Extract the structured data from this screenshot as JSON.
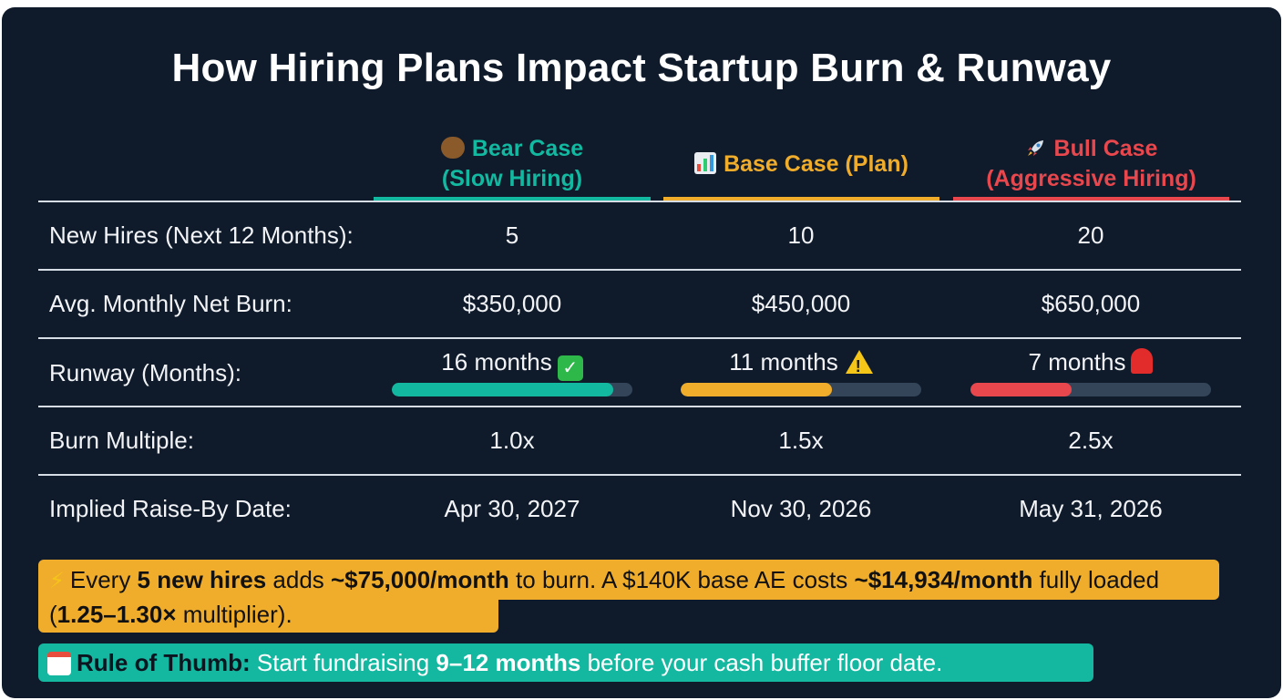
{
  "title": "How Hiring Plans Impact Startup Burn & Runway",
  "columns": [
    {
      "icon": "bear-icon",
      "line1": "Bear Case",
      "line2": "(Slow Hiring)",
      "color": "#12b8a0"
    },
    {
      "icon": "bar-chart-icon",
      "line1": "Base Case (Plan)",
      "line2": "",
      "color": "#f0ad2c"
    },
    {
      "icon": "rocket-icon",
      "line1": "Bull Case",
      "line2": "(Aggressive Hiring)",
      "color": "#e8474d"
    }
  ],
  "rows": {
    "new_hires": {
      "label": "New Hires (Next 12 Months):",
      "values": [
        "5",
        "10",
        "20"
      ]
    },
    "net_burn": {
      "label": "Avg. Monthly Net Burn:",
      "values": [
        "$350,000",
        "$450,000",
        "$650,000"
      ]
    },
    "runway": {
      "label": "Runway (Months):",
      "values": [
        "16 months",
        "11 months",
        "7 months"
      ],
      "status_icons": [
        "check-mark-icon",
        "warning-icon",
        "siren-icon"
      ],
      "bar_fill_fraction": [
        0.92,
        0.63,
        0.42
      ]
    },
    "burn_multiple": {
      "label": "Burn Multiple:",
      "values": [
        "1.0x",
        "1.5x",
        "2.5x"
      ]
    },
    "raise_by": {
      "label": "Implied Raise-By Date:",
      "values": [
        "Apr 30, 2027",
        "Nov 30, 2026",
        "May 31, 2026"
      ]
    }
  },
  "notes": {
    "hiring_cost": {
      "icon": "lightning-icon",
      "t1": "Every ",
      "b1": "5 new hires",
      "t2": " adds ",
      "b2": "~$75,000/month",
      "t3": " to burn. A $140K base AE costs ",
      "b3": "~$14,934/month",
      "t4": " fully loaded (",
      "b4": "1.25–1.30×",
      "t5": " multiplier)."
    },
    "rule_of_thumb": {
      "icon": "calendar-icon",
      "b1": "Rule of Thumb:",
      "t1": " Start fundraising ",
      "b2": "9–12 months",
      "t2": " before your cash buffer floor date."
    }
  },
  "colors": {
    "background": "#0f1b2b",
    "bear": "#12b8a0",
    "base": "#f0ad2c",
    "bull": "#e8474d",
    "track": "#344559"
  }
}
